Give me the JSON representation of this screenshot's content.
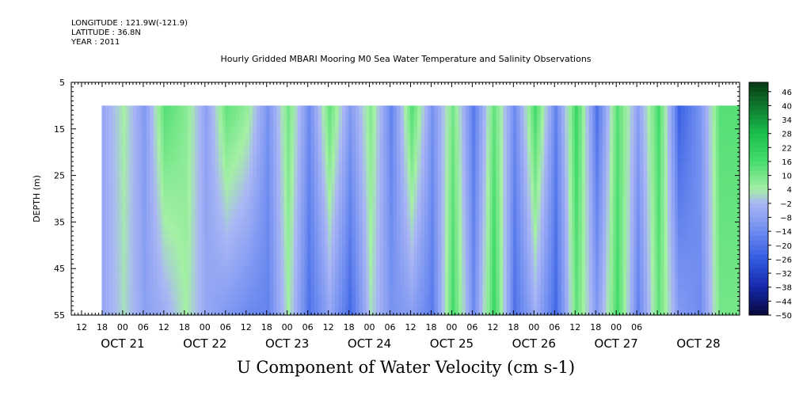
{
  "header": {
    "longitude": "LONGITUDE : 121.9W(-121.9)",
    "latitude": "LATITUDE : 36.8N",
    "year": "YEAR : 2011",
    "title": "Hourly Gridded MBARI Mooring M0 Sea Water Temperature and Salinity Observations"
  },
  "chart_data": {
    "type": "heatmap",
    "title": "U Component of Water Velocity (cm s-1)",
    "ylabel": "DEPTH (m)",
    "ylim": [
      55,
      5
    ],
    "y_ticks": [
      5,
      15,
      25,
      35,
      45,
      55
    ],
    "data_depth_range": [
      10,
      55
    ],
    "x_range_hours_label": "Oct 20 09:00 to Oct 28 12:00",
    "x_hour_ticks": [
      "12",
      "18",
      "00",
      "06",
      "12",
      "18",
      "00",
      "06",
      "12",
      "18",
      "00",
      "06",
      "12",
      "18",
      "00",
      "06",
      "12",
      "18",
      "00",
      "06",
      "12",
      "18",
      "00",
      "06",
      "12",
      "18",
      "00",
      "06"
    ],
    "x_date_labels": [
      "OCT 21",
      "OCT 22",
      "OCT 23",
      "OCT 24",
      "OCT 25",
      "OCT 26",
      "OCT 27",
      "OCT 28"
    ],
    "colorbar_levels": [
      46,
      40,
      34,
      28,
      22,
      16,
      10,
      4,
      -2,
      -8,
      -14,
      -20,
      -26,
      -32,
      -38,
      -44,
      -50
    ],
    "colorbar_range": [
      -50,
      50
    ],
    "column_profile": [
      {
        "date": "OCT 20 18",
        "surface": -6,
        "bottom": -6
      },
      {
        "date": "OCT 21 00",
        "surface": 4,
        "bottom": 2
      },
      {
        "date": "OCT 21 06",
        "surface": -10,
        "bottom": -8
      },
      {
        "date": "OCT 21 12",
        "surface": 14,
        "bottom": -4
      },
      {
        "date": "OCT 21 18",
        "surface": 8,
        "bottom": 4
      },
      {
        "date": "OCT 22 00",
        "surface": -8,
        "bottom": -6
      },
      {
        "date": "OCT 22 06",
        "surface": 12,
        "bottom": -10
      },
      {
        "date": "OCT 22 12",
        "surface": 6,
        "bottom": -14
      },
      {
        "date": "OCT 22 18",
        "surface": -12,
        "bottom": -16
      },
      {
        "date": "OCT 23 00",
        "surface": 10,
        "bottom": 4
      },
      {
        "date": "OCT 23 06",
        "surface": -14,
        "bottom": -20
      },
      {
        "date": "OCT 23 12",
        "surface": 12,
        "bottom": -6
      },
      {
        "date": "OCT 23 18",
        "surface": -10,
        "bottom": -22
      },
      {
        "date": "OCT 24 00",
        "surface": 8,
        "bottom": 2
      },
      {
        "date": "OCT 24 06",
        "surface": -16,
        "bottom": -12
      },
      {
        "date": "OCT 24 12",
        "surface": 14,
        "bottom": -8
      },
      {
        "date": "OCT 24 18",
        "surface": -12,
        "bottom": -18
      },
      {
        "date": "OCT 25 00",
        "surface": 10,
        "bottom": 16
      },
      {
        "date": "OCT 25 06",
        "surface": -18,
        "bottom": -14
      },
      {
        "date": "OCT 25 12",
        "surface": 12,
        "bottom": 18
      },
      {
        "date": "OCT 25 18",
        "surface": -14,
        "bottom": -20
      },
      {
        "date": "OCT 26 00",
        "surface": 16,
        "bottom": -4
      },
      {
        "date": "OCT 26 06",
        "surface": -16,
        "bottom": -22
      },
      {
        "date": "OCT 26 12",
        "surface": 18,
        "bottom": 12
      },
      {
        "date": "OCT 26 18",
        "surface": -20,
        "bottom": -10
      },
      {
        "date": "OCT 27 00",
        "surface": 14,
        "bottom": 16
      },
      {
        "date": "OCT 27 06",
        "surface": -8,
        "bottom": -16
      },
      {
        "date": "OCT 27 12",
        "surface": 16,
        "bottom": 12
      },
      {
        "date": "OCT 27 18",
        "surface": -24,
        "bottom": -10
      },
      {
        "date": "OCT 28 00",
        "surface": -12,
        "bottom": -14
      },
      {
        "date": "OCT 28 06",
        "surface": 14,
        "bottom": 10
      }
    ]
  },
  "colors": {
    "background": "#ffffff",
    "positive_light": "#a0f0a0",
    "positive_mid": "#3cdc64",
    "positive_dark": "#0a3c14",
    "negative_light": "#aab4f5",
    "negative_mid": "#5a78e6",
    "negative_dark": "#08083c"
  }
}
